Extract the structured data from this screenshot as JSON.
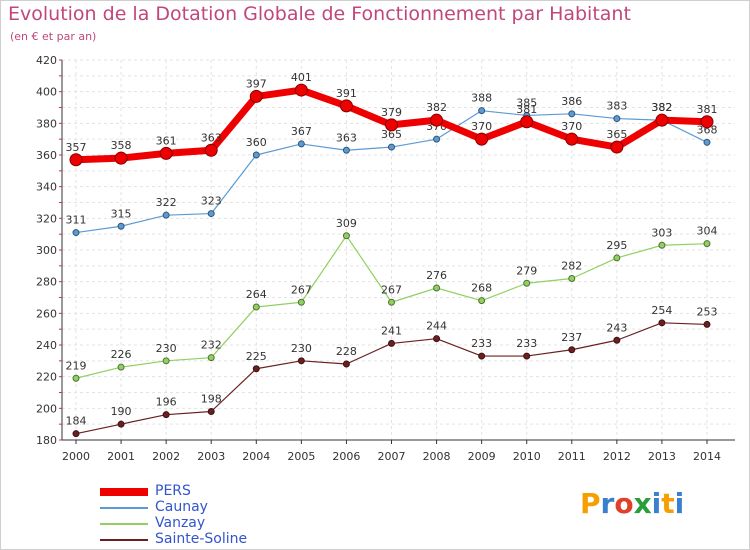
{
  "header": {
    "title": "Evolution de la Dotation Globale de Fonctionnement par Habitant",
    "subtitle": "(en € et par an)"
  },
  "logo": {
    "text": "Proxiti",
    "letters": [
      "P",
      "r",
      "o",
      "x",
      "i",
      "t",
      "i"
    ],
    "colors": [
      "#f5a000",
      "#3a7fd0",
      "#e0402a",
      "#2a9e3a",
      "#3a7fd0",
      "#f5a000",
      "#3a7fd0"
    ]
  },
  "chart_data": {
    "type": "line",
    "x": [
      "2000",
      "2001",
      "2002",
      "2003",
      "2004",
      "2005",
      "2006",
      "2007",
      "2008",
      "2009",
      "2010",
      "2011",
      "2012",
      "2013",
      "2014"
    ],
    "ylim": [
      180,
      420
    ],
    "yticks": [
      "180",
      "200",
      "220",
      "240",
      "260",
      "280",
      "300",
      "320",
      "340",
      "360",
      "380",
      "400",
      "420"
    ],
    "grid": true,
    "legend_position": "bottom-left",
    "series": [
      {
        "name": "Caunay",
        "color": "#5b9bd5",
        "width": 1.2,
        "values": [
          311,
          315,
          322,
          323,
          360,
          367,
          363,
          365,
          370,
          388,
          385,
          386,
          383,
          382,
          368
        ],
        "labels": [
          "311",
          "315",
          "322",
          "323",
          "360",
          "367",
          "363",
          "365",
          "370",
          "388",
          "385",
          "386",
          "383",
          "382",
          "368"
        ]
      },
      {
        "name": "Vanzay",
        "color": "#90d060",
        "width": 1.2,
        "values": [
          219,
          226,
          230,
          232,
          264,
          267,
          309,
          267,
          276,
          268,
          279,
          282,
          295,
          303,
          304
        ],
        "labels": [
          "219",
          "226",
          "230",
          "232",
          "264",
          "267",
          "309",
          "267",
          "276",
          "268",
          "279",
          "282",
          "295",
          "303",
          "304"
        ]
      },
      {
        "name": "Sainte-Soline",
        "color": "#6b2020",
        "width": 1.2,
        "values": [
          184,
          190,
          196,
          198,
          225,
          230,
          228,
          241,
          244,
          233,
          233,
          237,
          243,
          254,
          253
        ],
        "labels": [
          "184",
          "190",
          "196",
          "198",
          "225",
          "230",
          "228",
          "241",
          "244",
          "233",
          "233",
          "237",
          "243",
          "254",
          "253"
        ]
      },
      {
        "name": "PERS",
        "color": "#ee0000",
        "width": 7,
        "values": [
          357,
          358,
          361,
          363,
          397,
          401,
          391,
          379,
          382,
          370,
          381,
          370,
          365,
          382,
          381
        ],
        "labels": [
          "357",
          "358",
          "361",
          "363",
          "397",
          "401",
          "391",
          "379",
          "382",
          "370",
          "381",
          "370",
          "365",
          "382",
          "381"
        ]
      }
    ],
    "legend_order": [
      "PERS",
      "Caunay",
      "Vanzay",
      "Sainte-Soline"
    ]
  }
}
